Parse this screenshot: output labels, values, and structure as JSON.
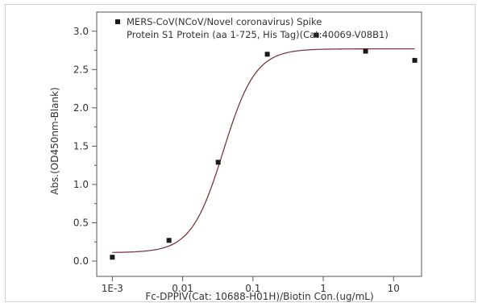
{
  "chart_data": {
    "type": "scatter",
    "xlabel": "Fc-DPPIV(Cat: 10688-H01H)/Biotin Con.(ug/mL)",
    "ylabel": "Abs.(OD450nm-Blank)",
    "xscale": "log",
    "xlim": [
      0.0006,
      25
    ],
    "ylim": [
      -0.2,
      3.25
    ],
    "x_ticks": [
      0.001,
      0.01,
      0.1,
      1,
      10
    ],
    "x_tick_labels": [
      "1E-3",
      "0.01",
      "0.1",
      "1",
      "10"
    ],
    "y_ticks": [
      0.0,
      0.5,
      1.0,
      1.5,
      2.0,
      2.5,
      3.0
    ],
    "y_tick_labels": [
      "0.0",
      "0.5",
      "1.0",
      "1.5",
      "2.0",
      "2.5",
      "3.0"
    ],
    "grid": false,
    "legend_position": "top",
    "series": [
      {
        "name": "MERS-CoV(NCoV/Novel coronavirus) Spike Protein S1 Protein (aa 1-725, His Tag)(Cat:40069-V08B1)",
        "legend_lines": [
          "MERS-CoV(NCoV/Novel coronavirus) Spike",
          "Protein S1 Protein (aa 1-725, His Tag)(Cat:40069-V08B1)"
        ],
        "marker": "square",
        "marker_color": "#1a1a1a",
        "x": [
          0.001,
          0.0064,
          0.032,
          0.16,
          0.8,
          4.0,
          20.0
        ],
        "y": [
          0.05,
          0.27,
          1.29,
          2.7,
          2.95,
          2.74,
          2.62
        ]
      }
    ],
    "fit_curve": {
      "model": "4PL",
      "bottom": 0.11,
      "top": 2.77,
      "ec50": 0.038,
      "hill": 1.9,
      "color": "#7a3b3b"
    }
  }
}
